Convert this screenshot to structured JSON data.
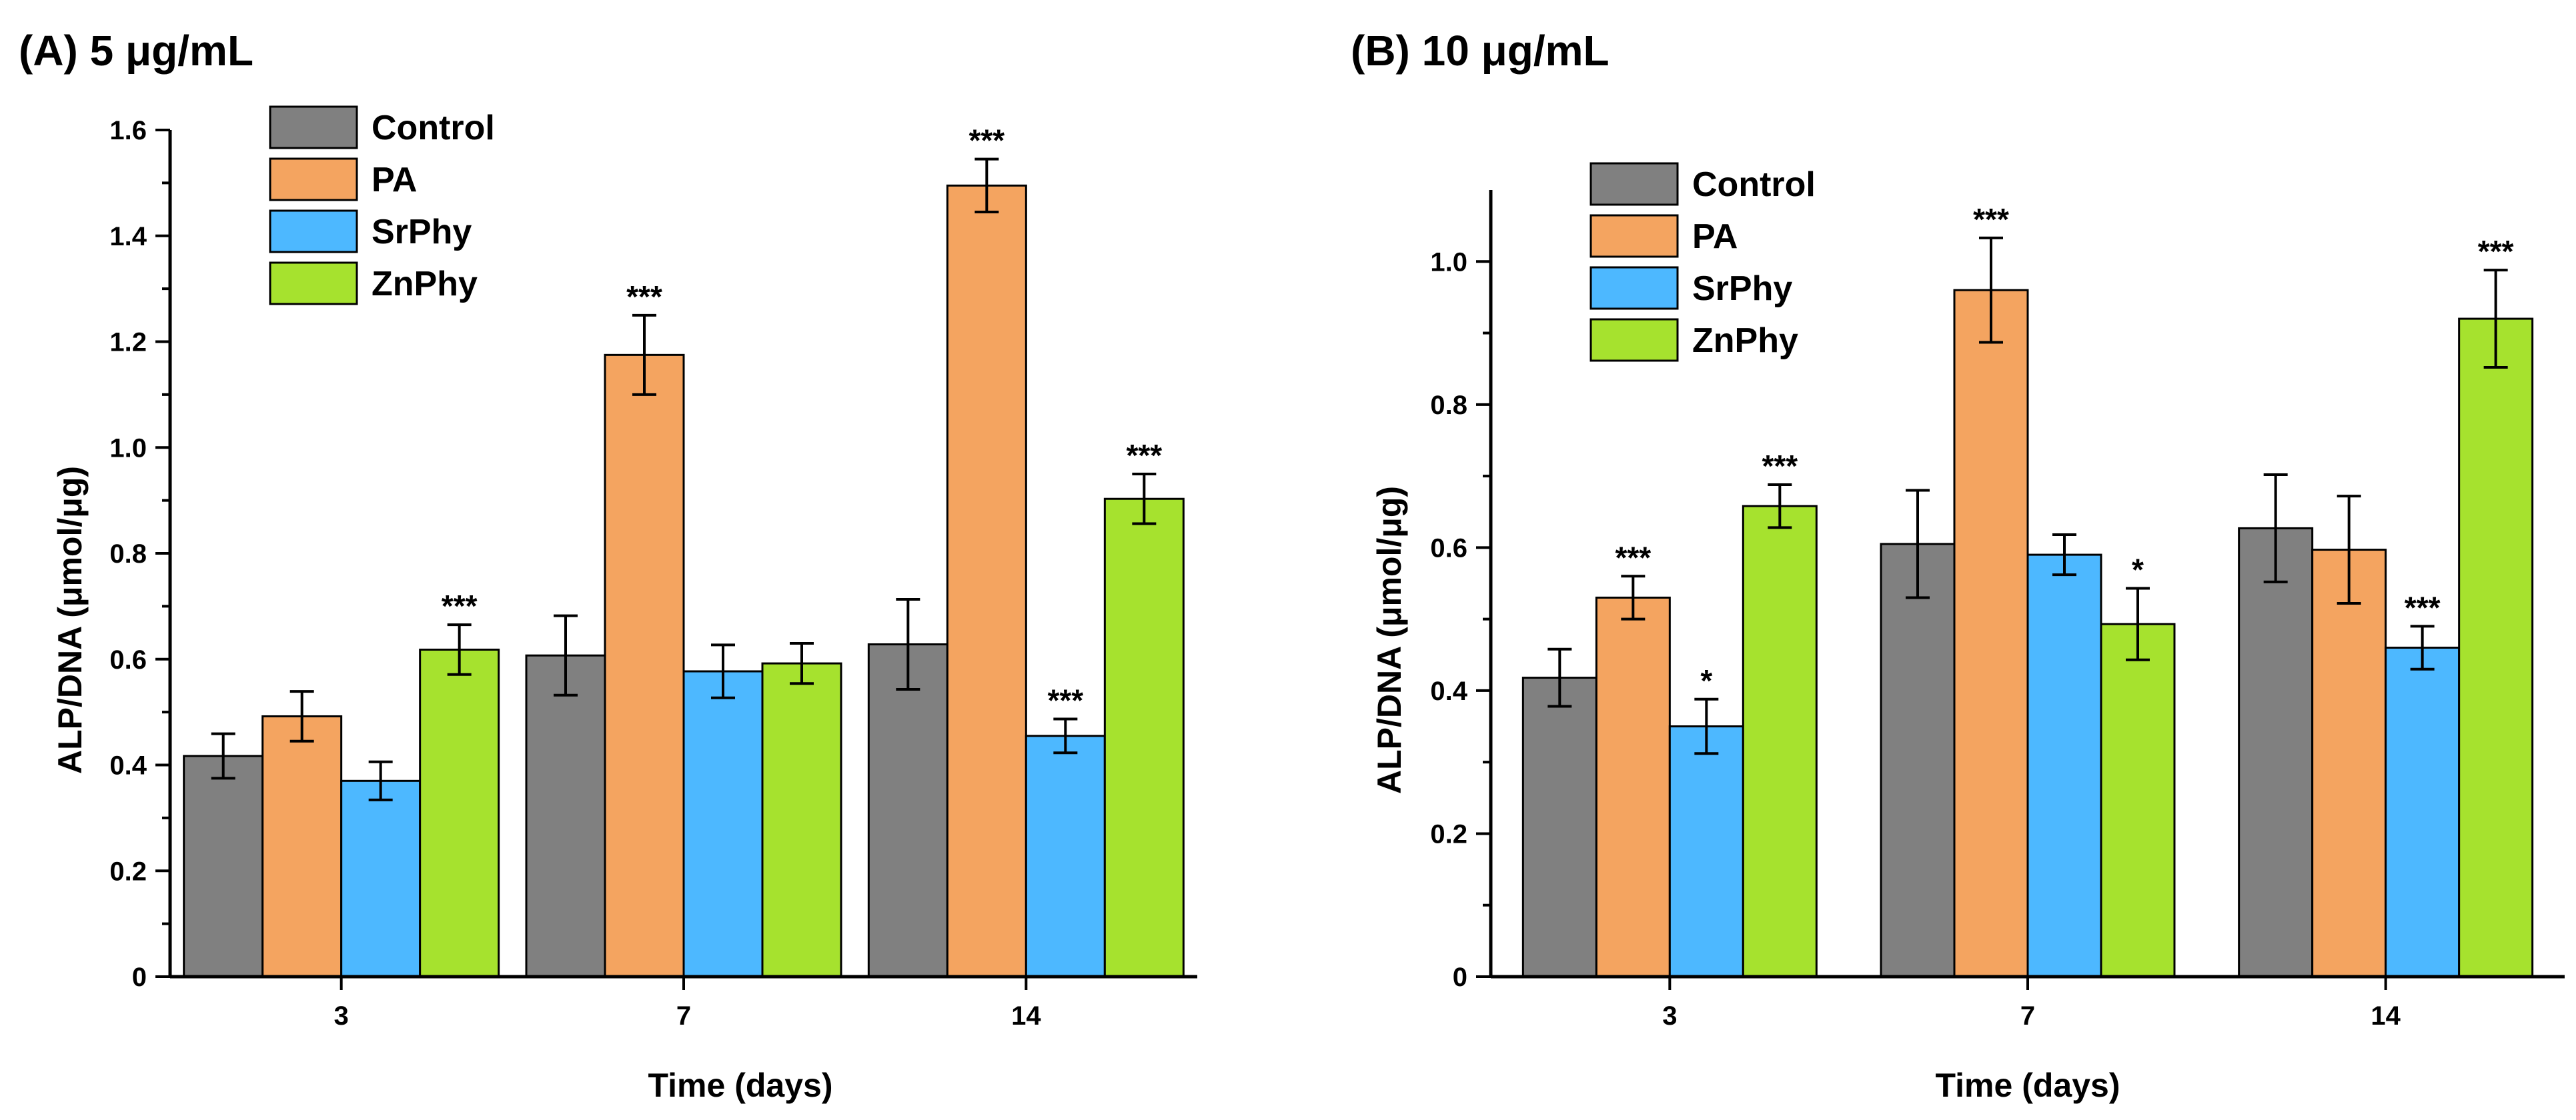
{
  "chart_data": [
    {
      "type": "bar",
      "title": "(A) 5 μg/mL",
      "xlabel": "Time (days)",
      "ylabel": "ALP/DNA (μmol/μg)",
      "categories": [
        "3",
        "7",
        "14"
      ],
      "ylim": [
        0,
        1.6
      ],
      "yticks": [
        "0",
        "0.2",
        "0.4",
        "0.6",
        "0.8",
        "1.0",
        "1.2",
        "1.4",
        "1.6"
      ],
      "legend_position": "top-left",
      "series": [
        {
          "name": "Control",
          "color": "#808080",
          "values": [
            0.417,
            0.607,
            0.628
          ],
          "errors": [
            0.042,
            0.075,
            0.085
          ],
          "significance": [
            "",
            "",
            ""
          ]
        },
        {
          "name": "PA",
          "color": "#F4A460",
          "values": [
            0.492,
            1.175,
            1.495
          ],
          "errors": [
            0.047,
            0.075,
            0.05
          ],
          "significance": [
            "",
            "***",
            "***"
          ]
        },
        {
          "name": "SrPhy",
          "color": "#4DB8FF",
          "values": [
            0.37,
            0.577,
            0.455
          ],
          "errors": [
            0.036,
            0.05,
            0.032
          ],
          "significance": [
            "",
            "",
            "***"
          ]
        },
        {
          "name": "ZnPhy",
          "color": "#A6E22E",
          "values": [
            0.618,
            0.592,
            0.903
          ],
          "errors": [
            0.047,
            0.038,
            0.047
          ],
          "significance": [
            "***",
            "",
            "***"
          ]
        }
      ]
    },
    {
      "type": "bar",
      "title": "(B) 10 μg/mL",
      "xlabel": "Time (days)",
      "ylabel": "ALP/DNA (μmol/μg)",
      "categories": [
        "3",
        "7",
        "14"
      ],
      "ylim": [
        0,
        1.1
      ],
      "yticks": [
        "0",
        "0.2",
        "0.4",
        "0.6",
        "0.8",
        "1.0"
      ],
      "legend_position": "top-left",
      "series": [
        {
          "name": "Control",
          "color": "#808080",
          "values": [
            0.418,
            0.605,
            0.627
          ],
          "errors": [
            0.04,
            0.075,
            0.075
          ],
          "significance": [
            "",
            "",
            ""
          ]
        },
        {
          "name": "PA",
          "color": "#F4A460",
          "values": [
            0.53,
            0.96,
            0.597
          ],
          "errors": [
            0.03,
            0.073,
            0.075
          ],
          "significance": [
            "***",
            "***",
            ""
          ]
        },
        {
          "name": "SrPhy",
          "color": "#4DB8FF",
          "values": [
            0.35,
            0.59,
            0.46
          ],
          "errors": [
            0.038,
            0.028,
            0.03
          ],
          "significance": [
            "*",
            "",
            "***"
          ]
        },
        {
          "name": "ZnPhy",
          "color": "#A6E22E",
          "values": [
            0.658,
            0.493,
            0.92
          ],
          "errors": [
            0.03,
            0.05,
            0.068
          ],
          "significance": [
            "***",
            "*",
            "***"
          ]
        }
      ]
    }
  ]
}
